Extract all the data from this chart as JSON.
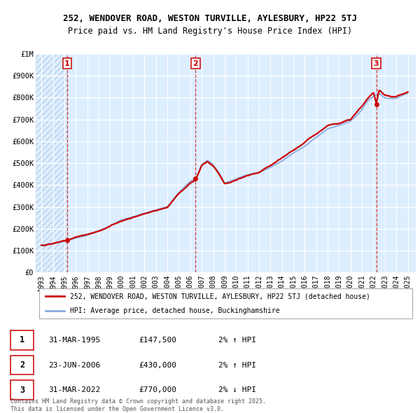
{
  "title1": "252, WENDOVER ROAD, WESTON TURVILLE, AYLESBURY, HP22 5TJ",
  "title2": "Price paid vs. HM Land Registry's House Price Index (HPI)",
  "plot_bg": "#ddeeff",
  "grid_color": "#ffffff",
  "sale_color": "#cc0000",
  "hpi_color": "#88aadd",
  "ylim": [
    0,
    1000000
  ],
  "yticks": [
    0,
    100000,
    200000,
    300000,
    400000,
    500000,
    600000,
    700000,
    800000,
    900000,
    1000000
  ],
  "ytick_labels": [
    "£0",
    "£100K",
    "£200K",
    "£300K",
    "£400K",
    "£500K",
    "£600K",
    "£700K",
    "£800K",
    "£900K",
    "£1M"
  ],
  "sale_dates": [
    1995.25,
    2006.47,
    2022.25
  ],
  "sale_prices": [
    147500,
    430000,
    770000
  ],
  "sale_labels": [
    "1",
    "2",
    "3"
  ],
  "legend_line1": "252, WENDOVER ROAD, WESTON TURVILLE, AYLESBURY, HP22 5TJ (detached house)",
  "legend_line2": "HPI: Average price, detached house, Buckinghamshire",
  "table_rows": [
    [
      "1",
      "31-MAR-1995",
      "£147,500",
      "2% ↑ HPI"
    ],
    [
      "2",
      "23-JUN-2006",
      "£430,000",
      "2% ↑ HPI"
    ],
    [
      "3",
      "31-MAR-2022",
      "£770,000",
      "2% ↓ HPI"
    ]
  ],
  "footnote": "Contains HM Land Registry data © Crown copyright and database right 2025.\nThis data is licensed under the Open Government Licence v3.0.",
  "xlim": [
    1992.5,
    2025.7
  ],
  "xticks": [
    1993,
    1994,
    1995,
    1996,
    1997,
    1998,
    1999,
    2000,
    2001,
    2002,
    2003,
    2004,
    2005,
    2006,
    2007,
    2008,
    2009,
    2010,
    2011,
    2012,
    2013,
    2014,
    2015,
    2016,
    2017,
    2018,
    2019,
    2020,
    2021,
    2022,
    2023,
    2024,
    2025
  ]
}
